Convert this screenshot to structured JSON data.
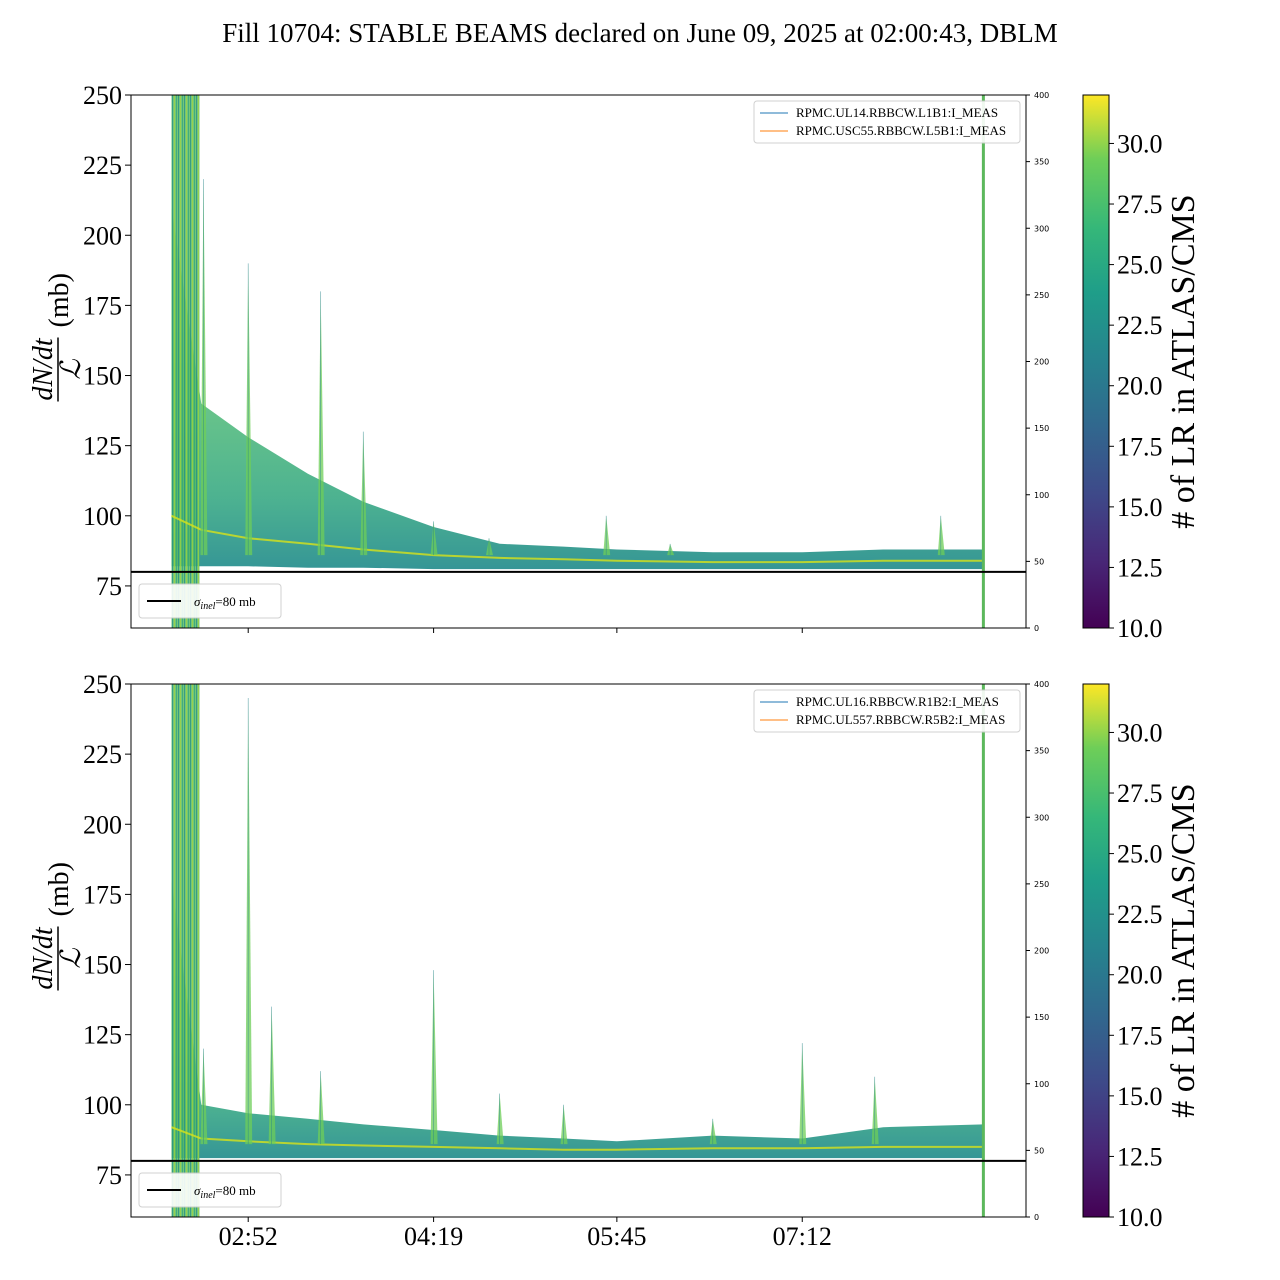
{
  "title": "Fill 10704: STABLE BEAMS declared on June 09, 2025 at 02:00:43, DBLM",
  "chart_data": [
    {
      "type": "line",
      "panel": "top",
      "ylabel_numerator": "dN/dt",
      "ylabel_denominator": "ℒ",
      "ylabel_unit": "(mb)",
      "ylim": [
        60,
        250
      ],
      "yticks": [
        75,
        100,
        125,
        150,
        175,
        200,
        225,
        250
      ],
      "y2lim": [
        0,
        400
      ],
      "y2ticks": [
        0,
        50,
        100,
        150,
        200,
        250,
        300,
        350,
        400
      ],
      "xlim": [
        "01:57",
        "08:57"
      ],
      "xticks": [
        "02:52",
        "04:19",
        "05:45",
        "07:12"
      ],
      "xtick_labels_visible": false,
      "hline": {
        "y": 80,
        "label_sym": "σ",
        "label_sub": "inel",
        "label_val": "=80 mb",
        "color": "#000000"
      },
      "vline": {
        "x": "08:37",
        "color": "#5cb85c"
      },
      "legend": [
        {
          "name": "RPMC.UL14.RBBCW.L1B1:I_MEAS",
          "color": "#1f77b4"
        },
        {
          "name": "RPMC.USC55.RBBCW.L5B1:I_MEAS",
          "color": "#ff7f0e"
        }
      ],
      "grid": false,
      "band": {
        "x": [
          "02:16",
          "02:30",
          "02:52",
          "03:20",
          "03:46",
          "04:19",
          "04:50",
          "05:20",
          "05:45",
          "06:30",
          "07:12",
          "07:50",
          "08:37"
        ],
        "upper": [
          210,
          140,
          128,
          115,
          105,
          96,
          90,
          89,
          88,
          87,
          87,
          88,
          88
        ],
        "center": [
          100,
          95,
          92,
          90,
          88,
          86,
          85,
          84.5,
          84,
          83.5,
          83.5,
          84,
          84
        ],
        "lower": [
          82,
          82,
          82,
          81.5,
          81.5,
          81,
          81,
          81,
          81,
          81,
          81,
          81,
          81
        ]
      },
      "spikes": [
        {
          "x": "02:31",
          "y": 220
        },
        {
          "x": "02:52",
          "y": 190
        },
        {
          "x": "03:26",
          "y": 180
        },
        {
          "x": "03:46",
          "y": 130
        },
        {
          "x": "04:19",
          "y": 98
        },
        {
          "x": "04:45",
          "y": 92
        },
        {
          "x": "05:40",
          "y": 100
        },
        {
          "x": "06:10",
          "y": 90
        },
        {
          "x": "08:17",
          "y": 100
        }
      ],
      "colorbar": {
        "label": "# of LR in ATLAS/CMS",
        "range": [
          10,
          32
        ],
        "ticks": [
          "10.0",
          "12.5",
          "15.0",
          "17.5",
          "20.0",
          "22.5",
          "25.0",
          "27.5",
          "30.0"
        ],
        "cmap": "viridis"
      }
    },
    {
      "type": "line",
      "panel": "bottom",
      "ylabel_numerator": "dN/dt",
      "ylabel_denominator": "ℒ",
      "ylabel_unit": "(mb)",
      "ylim": [
        60,
        250
      ],
      "yticks": [
        75,
        100,
        125,
        150,
        175,
        200,
        225,
        250
      ],
      "y2lim": [
        0,
        400
      ],
      "y2ticks": [
        0,
        50,
        100,
        150,
        200,
        250,
        300,
        350,
        400
      ],
      "xlim": [
        "01:57",
        "08:57"
      ],
      "xticks": [
        "02:52",
        "04:19",
        "05:45",
        "07:12"
      ],
      "xtick_labels_visible": true,
      "hline": {
        "y": 80,
        "label_sym": "σ",
        "label_sub": "inel",
        "label_val": "=80 mb",
        "color": "#000000"
      },
      "vline": {
        "x": "08:37",
        "color": "#5cb85c"
      },
      "legend": [
        {
          "name": "RPMC.UL16.RBBCW.R1B2:I_MEAS",
          "color": "#1f77b4"
        },
        {
          "name": "RPMC.UL557.RBBCW.R5B2:I_MEAS",
          "color": "#ff7f0e"
        }
      ],
      "grid": false,
      "band": {
        "x": [
          "02:16",
          "02:30",
          "02:52",
          "03:20",
          "03:46",
          "04:19",
          "04:50",
          "05:20",
          "05:45",
          "06:30",
          "07:12",
          "07:50",
          "08:37"
        ],
        "upper": [
          180,
          100,
          97,
          95,
          93,
          91,
          89,
          88,
          87,
          89,
          88,
          92,
          93
        ],
        "center": [
          92,
          88,
          87,
          86,
          85.5,
          85,
          84.5,
          84,
          84,
          84.5,
          84.5,
          85,
          85
        ],
        "lower": [
          81,
          81,
          81,
          81,
          81,
          81,
          81,
          81,
          81,
          81,
          81,
          81,
          81
        ]
      },
      "spikes": [
        {
          "x": "02:31",
          "y": 120
        },
        {
          "x": "02:52",
          "y": 245
        },
        {
          "x": "03:03",
          "y": 135
        },
        {
          "x": "03:26",
          "y": 112
        },
        {
          "x": "04:19",
          "y": 148
        },
        {
          "x": "04:50",
          "y": 104
        },
        {
          "x": "05:20",
          "y": 100
        },
        {
          "x": "06:30",
          "y": 95
        },
        {
          "x": "07:12",
          "y": 122
        },
        {
          "x": "07:46",
          "y": 110
        }
      ],
      "colorbar": {
        "label": "# of LR in ATLAS/CMS",
        "range": [
          10,
          32
        ],
        "ticks": [
          "10.0",
          "12.5",
          "15.0",
          "17.5",
          "20.0",
          "22.5",
          "25.0",
          "27.5",
          "30.0"
        ],
        "cmap": "viridis"
      }
    }
  ]
}
